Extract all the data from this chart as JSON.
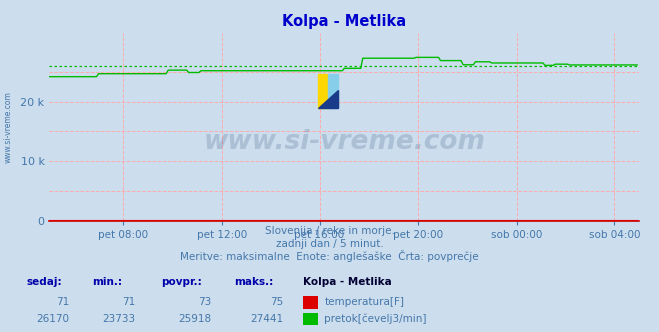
{
  "title": "Kolpa - Metlika",
  "title_color": "#0000cc",
  "bg_color": "#ccdded",
  "plot_bg_color": "#ccdded",
  "grid_color_v": "#ffaaaa",
  "grid_color_h": "#ffaaaa",
  "x_tick_labels": [
    "pet 08:00",
    "pet 12:00",
    "pet 16:00",
    "pet 20:00",
    "sob 00:00",
    "sob 04:00"
  ],
  "x_tick_positions_frac": [
    0.125,
    0.292,
    0.458,
    0.625,
    0.792,
    0.958
  ],
  "y_ticks": [
    0,
    10000,
    20000
  ],
  "y_tick_labels": [
    "0",
    "10 k",
    "20 k"
  ],
  "ylim_max": 30000,
  "temp_color": "#dd0000",
  "flow_color": "#00bb00",
  "avg_color": "#00bb00",
  "watermark_text": "www.si-vreme.com",
  "watermark_color": "#1a3a6a",
  "watermark_alpha": 0.18,
  "subtitle_line1": "Slovenija / reke in morje.",
  "subtitle_line2": "zadnji dan / 5 minut.",
  "subtitle_line3": "Meritve: maksimalne  Enote: anglešaške  Črta: povprečje",
  "subtitle_color": "#4477aa",
  "footer_label_color": "#0000aa",
  "footer_value_color": "#4477aa",
  "footer_headers": [
    "sedaj:",
    "min.:",
    "povpr.:",
    "maks.:"
  ],
  "temp_row": [
    "71",
    "71",
    "73",
    "75"
  ],
  "flow_row": [
    "26170",
    "23733",
    "25918",
    "27441"
  ],
  "station_name": "Kolpa - Metlika",
  "temp_label": "temperatura[F]",
  "flow_label": "pretok[čevelj3/min]",
  "avg_value": 25918,
  "flow_min": 23733,
  "flow_max": 27441,
  "n_points": 288,
  "left_label": "www.si-vreme.com",
  "left_label_color": "#4477aa"
}
